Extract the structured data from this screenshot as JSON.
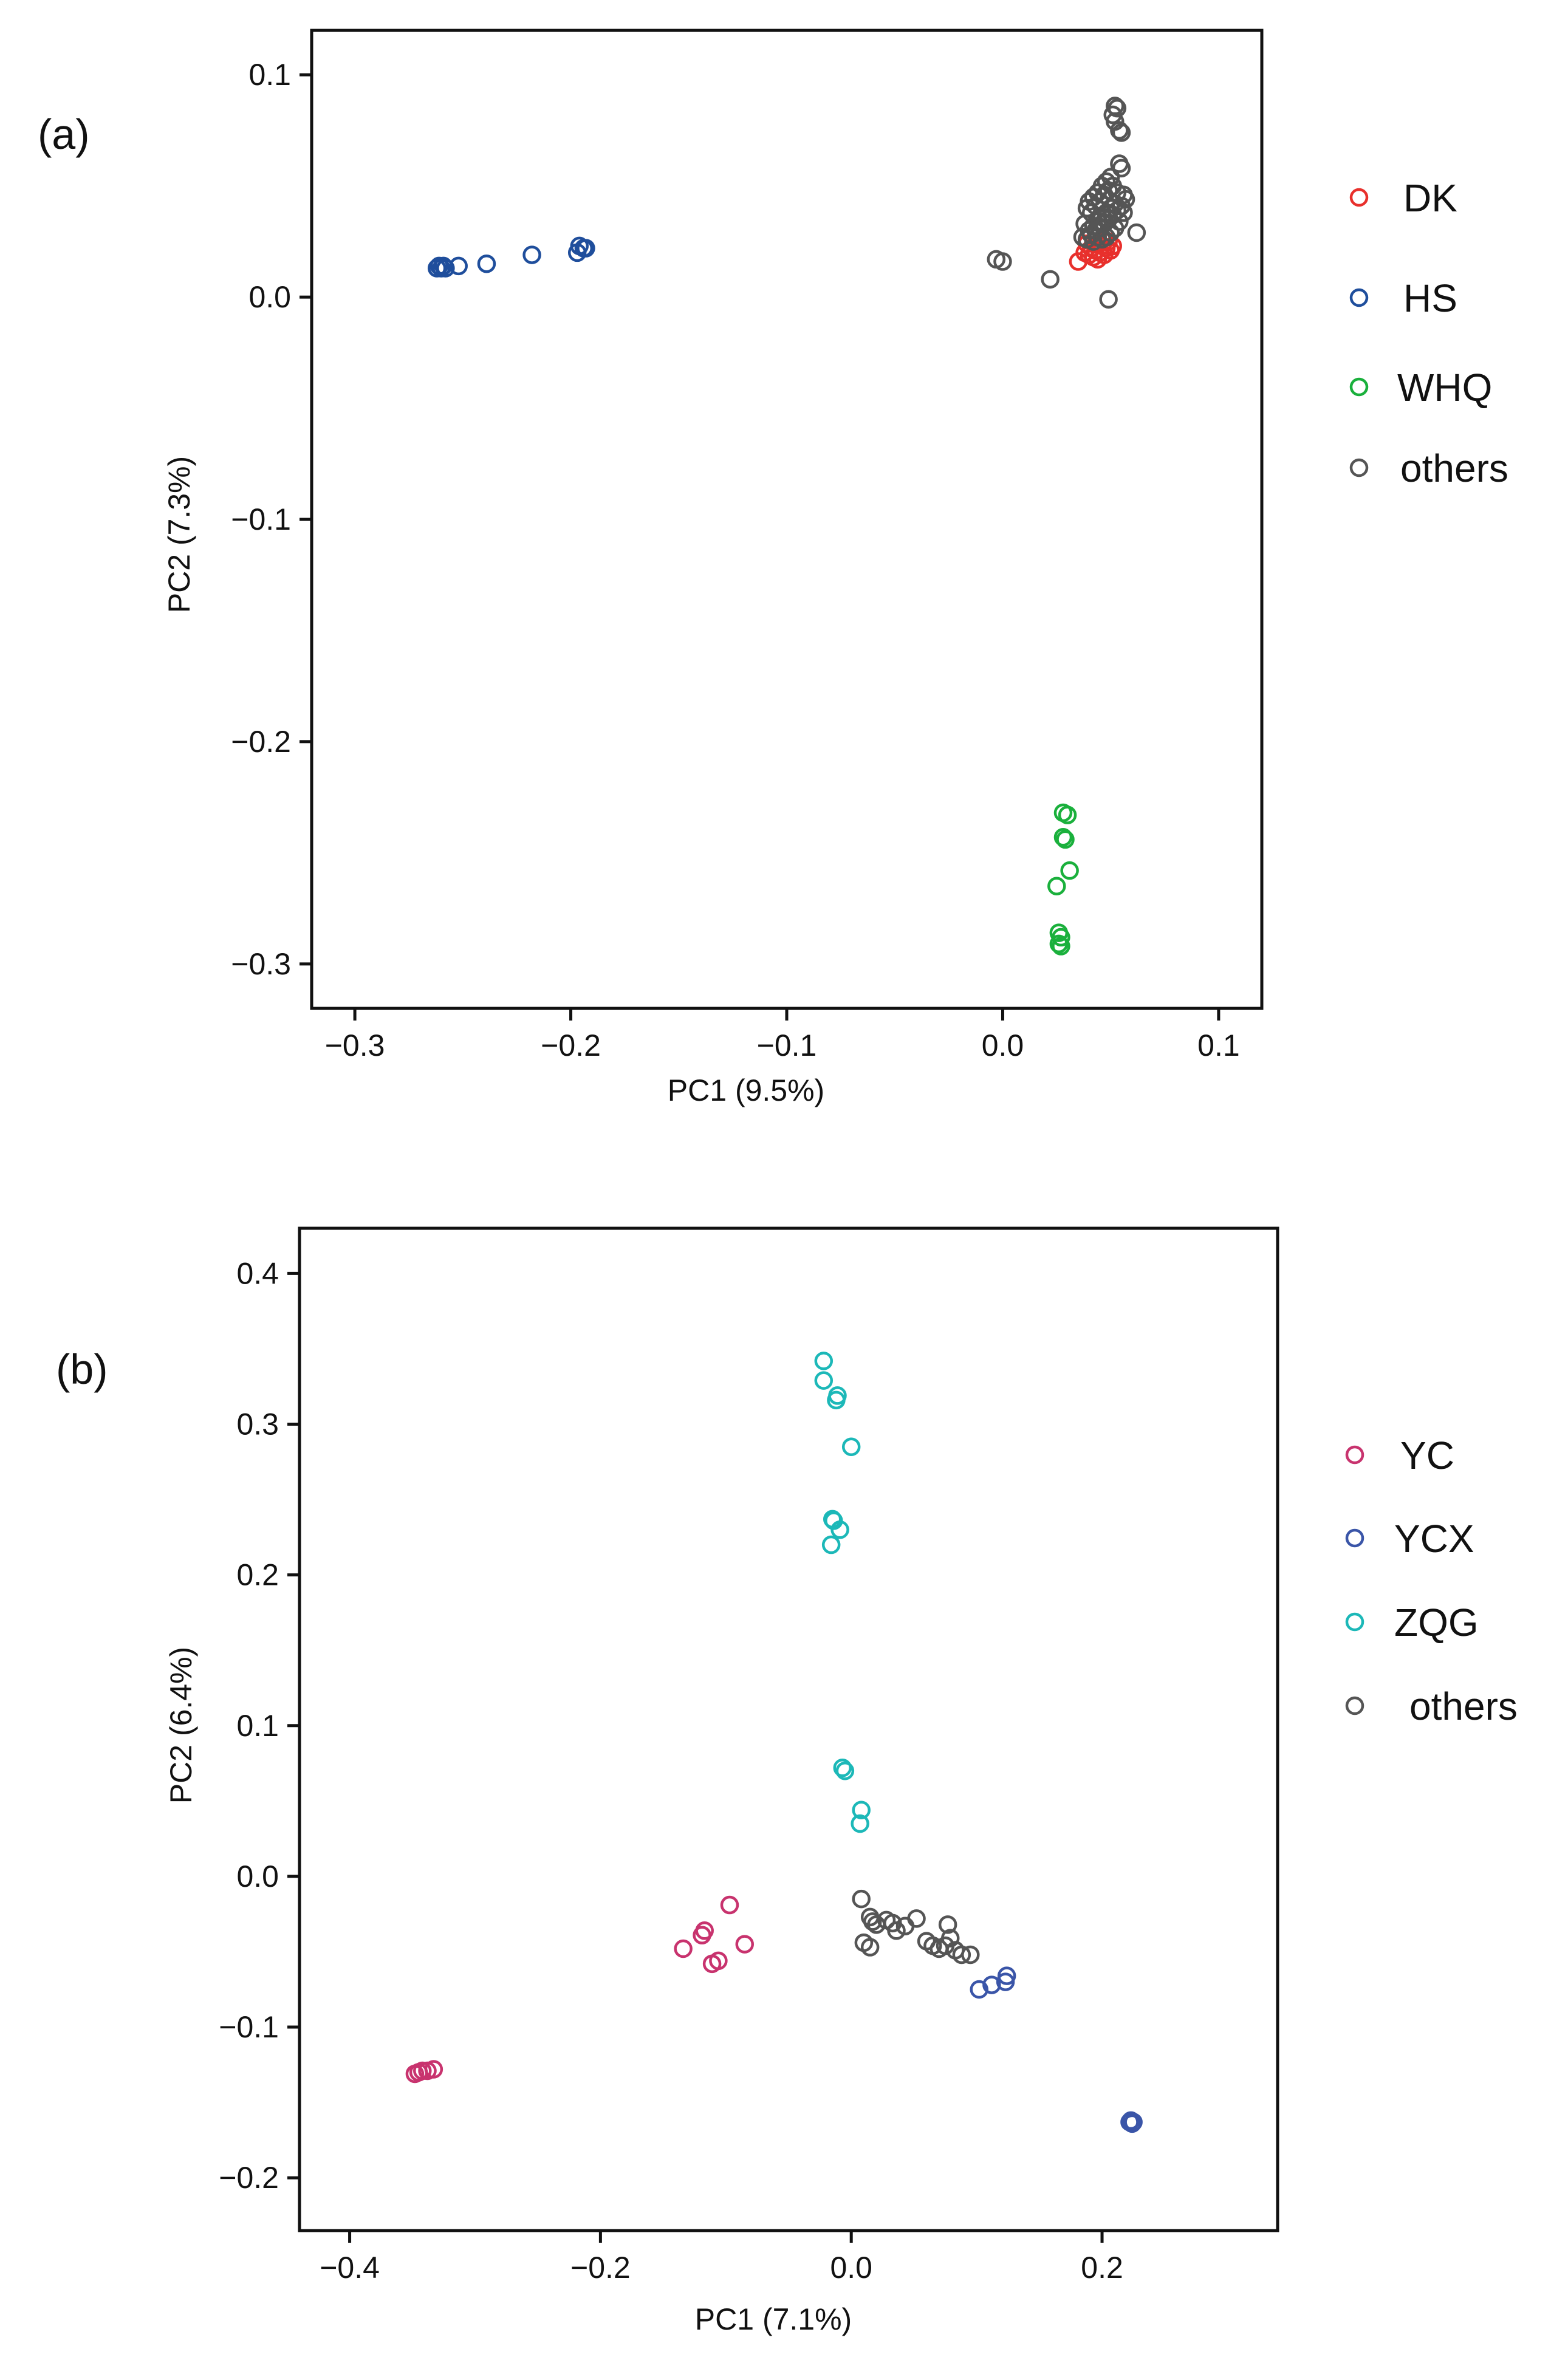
{
  "chart_data": [
    {
      "type": "scatter",
      "panel_label": "(a)",
      "xlabel": "PC1 (9.5%)",
      "ylabel": "PC2 (7.3%)",
      "xlim": [
        -0.32,
        0.12
      ],
      "ylim": [
        -0.32,
        0.12
      ],
      "xticks": [
        -0.3,
        -0.2,
        -0.1,
        0.0,
        0.1
      ],
      "xtick_labels": [
        "−0.3",
        "−0.2",
        "−0.1",
        "0.0",
        "0.1"
      ],
      "yticks": [
        0.1,
        0.0,
        -0.1,
        -0.2,
        -0.3
      ],
      "ytick_labels": [
        "0.1",
        "0.0",
        "−0.1",
        "−0.2",
        "−0.3"
      ],
      "legend": {
        "position": "right"
      },
      "series": [
        {
          "name": "DK",
          "color": "#e8302c",
          "points": [
            [
              0.035,
              0.016
            ],
            [
              0.038,
              0.02
            ],
            [
              0.04,
              0.019
            ],
            [
              0.041,
              0.022
            ],
            [
              0.042,
              0.018
            ],
            [
              0.043,
              0.021
            ],
            [
              0.044,
              0.024
            ],
            [
              0.045,
              0.02
            ],
            [
              0.046,
              0.023
            ],
            [
              0.047,
              0.019
            ],
            [
              0.048,
              0.022
            ],
            [
              0.049,
              0.025
            ],
            [
              0.05,
              0.021
            ],
            [
              0.051,
              0.023
            ],
            [
              0.039,
              0.024
            ],
            [
              0.044,
              0.017
            ],
            [
              0.047,
              0.025
            ]
          ]
        },
        {
          "name": "HS",
          "color": "#1f4e9c",
          "points": [
            [
              -0.262,
              0.013
            ],
            [
              -0.261,
              0.014
            ],
            [
              -0.26,
              0.013
            ],
            [
              -0.259,
              0.014
            ],
            [
              -0.258,
              0.013
            ],
            [
              -0.252,
              0.014
            ],
            [
              -0.239,
              0.015
            ],
            [
              -0.218,
              0.019
            ],
            [
              -0.197,
              0.02
            ],
            [
              -0.196,
              0.023
            ],
            [
              -0.194,
              0.022
            ],
            [
              -0.193,
              0.022
            ]
          ]
        },
        {
          "name": "WHQ",
          "color": "#1ab03c",
          "points": [
            [
              0.028,
              -0.232
            ],
            [
              0.03,
              -0.233
            ],
            [
              0.028,
              -0.243
            ],
            [
              0.029,
              -0.244
            ],
            [
              0.031,
              -0.258
            ],
            [
              0.025,
              -0.265
            ],
            [
              0.026,
              -0.286
            ],
            [
              0.027,
              -0.288
            ],
            [
              0.026,
              -0.291
            ],
            [
              0.027,
              -0.292
            ]
          ]
        },
        {
          "name": "others",
          "color": "#555555",
          "points": [
            [
              -0.003,
              0.017
            ],
            [
              0.0,
              0.016
            ],
            [
              0.022,
              0.008
            ],
            [
              0.049,
              -0.001
            ],
            [
              0.062,
              0.029
            ],
            [
              0.052,
              0.086
            ],
            [
              0.053,
              0.085
            ],
            [
              0.051,
              0.082
            ],
            [
              0.052,
              0.079
            ],
            [
              0.054,
              0.075
            ],
            [
              0.055,
              0.074
            ],
            [
              0.054,
              0.06
            ],
            [
              0.055,
              0.058
            ],
            [
              0.056,
              0.046
            ],
            [
              0.057,
              0.044
            ],
            [
              0.05,
              0.054
            ],
            [
              0.048,
              0.052
            ],
            [
              0.046,
              0.05
            ],
            [
              0.044,
              0.047
            ],
            [
              0.042,
              0.045
            ],
            [
              0.04,
              0.043
            ],
            [
              0.039,
              0.04
            ],
            [
              0.041,
              0.038
            ],
            [
              0.043,
              0.041
            ],
            [
              0.045,
              0.043
            ],
            [
              0.047,
              0.046
            ],
            [
              0.049,
              0.048
            ],
            [
              0.051,
              0.05
            ],
            [
              0.053,
              0.047
            ],
            [
              0.052,
              0.042
            ],
            [
              0.05,
              0.04
            ],
            [
              0.048,
              0.038
            ],
            [
              0.046,
              0.036
            ],
            [
              0.044,
              0.034
            ],
            [
              0.042,
              0.032
            ],
            [
              0.04,
              0.03
            ],
            [
              0.038,
              0.033
            ],
            [
              0.037,
              0.027
            ],
            [
              0.039,
              0.026
            ],
            [
              0.041,
              0.028
            ],
            [
              0.043,
              0.03
            ],
            [
              0.045,
              0.031
            ],
            [
              0.047,
              0.033
            ],
            [
              0.049,
              0.035
            ],
            [
              0.051,
              0.037
            ],
            [
              0.053,
              0.039
            ],
            [
              0.055,
              0.041
            ],
            [
              0.056,
              0.038
            ],
            [
              0.054,
              0.034
            ],
            [
              0.052,
              0.031
            ],
            [
              0.05,
              0.029
            ],
            [
              0.048,
              0.027
            ],
            [
              0.046,
              0.026
            ],
            [
              0.044,
              0.027
            ],
            [
              0.042,
              0.025
            ]
          ]
        }
      ]
    },
    {
      "type": "scatter",
      "panel_label": "(b)",
      "xlabel": "PC1 (7.1%)",
      "ylabel": "PC2 (6.4%)",
      "xlim": [
        -0.44,
        0.34
      ],
      "ylim": [
        -0.235,
        0.43
      ],
      "xticks": [
        -0.4,
        -0.2,
        0.0,
        0.2
      ],
      "xtick_labels": [
        "−0.4",
        "−0.2",
        "0.0",
        "0.2"
      ],
      "yticks": [
        0.4,
        0.3,
        0.2,
        0.1,
        0.0,
        -0.1,
        -0.2
      ],
      "ytick_labels": [
        "0.4",
        "0.3",
        "0.2",
        "0.1",
        "0.0",
        "−0.1",
        "−0.2"
      ],
      "legend": {
        "position": "right"
      },
      "series": [
        {
          "name": "YC",
          "color": "#c8336e",
          "points": [
            [
              -0.348,
              -0.131
            ],
            [
              -0.345,
              -0.13
            ],
            [
              -0.342,
              -0.129
            ],
            [
              -0.338,
              -0.129
            ],
            [
              -0.333,
              -0.128
            ],
            [
              -0.134,
              -0.048
            ],
            [
              -0.119,
              -0.039
            ],
            [
              -0.117,
              -0.036
            ],
            [
              -0.111,
              -0.058
            ],
            [
              -0.106,
              -0.056
            ],
            [
              -0.097,
              -0.019
            ],
            [
              -0.085,
              -0.045
            ]
          ]
        },
        {
          "name": "YCX",
          "color": "#3a55a8",
          "points": [
            [
              0.102,
              -0.075
            ],
            [
              0.112,
              -0.072
            ],
            [
              0.123,
              -0.07
            ],
            [
              0.124,
              -0.066
            ],
            [
              0.222,
              -0.163
            ],
            [
              0.224,
              -0.164
            ],
            [
              0.223,
              -0.162
            ],
            [
              0.225,
              -0.163
            ]
          ]
        },
        {
          "name": "ZQG",
          "color": "#1cb8b8",
          "points": [
            [
              -0.022,
              0.342
            ],
            [
              -0.022,
              0.329
            ],
            [
              -0.011,
              0.319
            ],
            [
              -0.012,
              0.316
            ],
            [
              0.0,
              0.285
            ],
            [
              -0.015,
              0.237
            ],
            [
              -0.014,
              0.236
            ],
            [
              -0.009,
              0.23
            ],
            [
              -0.016,
              0.22
            ],
            [
              -0.007,
              0.072
            ],
            [
              -0.005,
              0.07
            ],
            [
              0.008,
              0.044
            ],
            [
              0.007,
              0.035
            ]
          ]
        },
        {
          "name": "others",
          "color": "#555555",
          "points": [
            [
              0.008,
              -0.015
            ],
            [
              0.015,
              -0.027
            ],
            [
              0.017,
              -0.03
            ],
            [
              0.02,
              -0.032
            ],
            [
              0.028,
              -0.029
            ],
            [
              0.033,
              -0.031
            ],
            [
              0.036,
              -0.036
            ],
            [
              0.043,
              -0.033
            ],
            [
              0.052,
              -0.028
            ],
            [
              0.06,
              -0.043
            ],
            [
              0.065,
              -0.046
            ],
            [
              0.07,
              -0.048
            ],
            [
              0.075,
              -0.046
            ],
            [
              0.077,
              -0.032
            ],
            [
              0.079,
              -0.041
            ],
            [
              0.083,
              -0.049
            ],
            [
              0.088,
              -0.052
            ],
            [
              0.095,
              -0.052
            ],
            [
              0.01,
              -0.044
            ],
            [
              0.015,
              -0.047
            ]
          ]
        }
      ]
    }
  ]
}
